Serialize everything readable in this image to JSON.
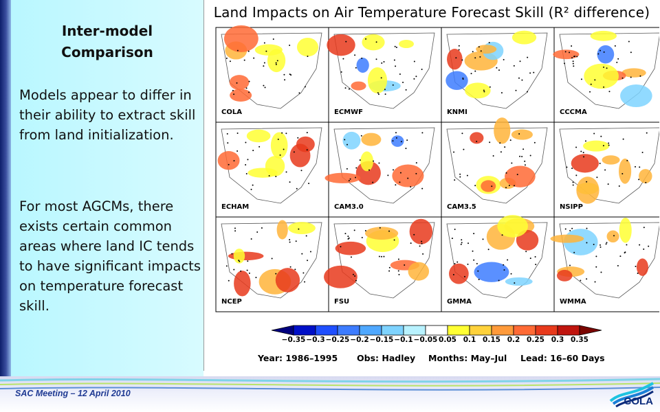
{
  "panel": {
    "title_line1": "Inter-model",
    "title_line2": "Comparison",
    "paragraph1": "Models appear to differ in their ability to extract skill from land initialization.",
    "paragraph2": "For most AGCMs, there exists certain common areas where land IC tends to have significant impacts on temperature forecast skill."
  },
  "figure": {
    "title": "Land Impacts on Air Temperature Forecast Skill (R² difference)",
    "models": [
      "COLA",
      "ECMWF",
      "KNMI",
      "CCCMA",
      "ECHAM",
      "CAM3.0",
      "CAM3.5",
      "NSIPP",
      "NCEP",
      "FSU",
      "GMMA",
      "WMMA"
    ],
    "colorbar": {
      "labels": [
        "−0.35",
        "−0.3",
        "−0.25",
        "−0.2",
        "−0.15",
        "−0.1",
        "−0.05",
        "0.05",
        "0.1",
        "0.15",
        "0.2",
        "0.25",
        "0.3",
        "0.35"
      ],
      "colors": [
        "#00007f",
        "#0010c8",
        "#1f4fff",
        "#3d7cff",
        "#4fa8ff",
        "#7ed3ff",
        "#b8f2ff",
        "#ffffff",
        "#ffff33",
        "#ffd23b",
        "#ff9a3a",
        "#ff6a35",
        "#e83a1c",
        "#c0150e",
        "#7a0500"
      ]
    },
    "info": {
      "year": "Year: 1986–1995",
      "obs": "Obs: Hadley",
      "months": "Months: May–Jul",
      "lead": "Lead: 16–60 Days"
    }
  },
  "footer": {
    "meeting": "SAC Meeting – 12 April 2010",
    "logo": "COLA"
  }
}
